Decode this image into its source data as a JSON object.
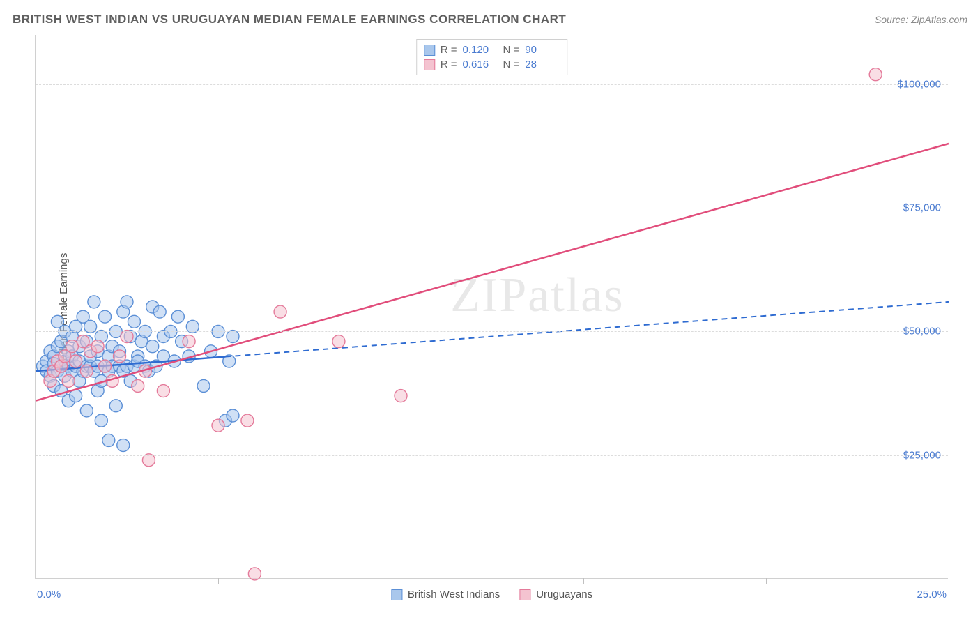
{
  "title": "BRITISH WEST INDIAN VS URUGUAYAN MEDIAN FEMALE EARNINGS CORRELATION CHART",
  "source": "Source: ZipAtlas.com",
  "watermark": "ZIPatlas",
  "ylabel": "Median Female Earnings",
  "chart": {
    "type": "scatter",
    "xlim": [
      0,
      25
    ],
    "ylim": [
      0,
      110000
    ],
    "x_ticks": [
      0,
      5,
      10,
      15,
      20,
      25
    ],
    "x_tick_labels_shown": {
      "0": "0.0%",
      "25": "25.0%"
    },
    "y_ticks": [
      25000,
      50000,
      75000,
      100000
    ],
    "y_tick_labels": [
      "$25,000",
      "$50,000",
      "$75,000",
      "$100,000"
    ],
    "grid_color": "#dcdcdc",
    "axis_color": "#d0d0d0",
    "background_color": "#ffffff",
    "tick_label_color": "#4a7bd0",
    "axis_label_color": "#555555",
    "marker_radius": 9,
    "marker_opacity": 0.55,
    "marker_stroke_width": 1.4,
    "series": [
      {
        "name": "British West Indians",
        "fill_color": "#a9c7ec",
        "stroke_color": "#5b8fd6",
        "line_color": "#2e6bd1",
        "R": "0.120",
        "N": "90",
        "regression": {
          "x1": 0,
          "y1": 42000,
          "x2": 25,
          "y2": 56000,
          "solid_until_x": 5.2
        },
        "points": [
          [
            0.2,
            43000
          ],
          [
            0.3,
            44000
          ],
          [
            0.3,
            42000
          ],
          [
            0.4,
            46000
          ],
          [
            0.4,
            41000
          ],
          [
            0.5,
            45000
          ],
          [
            0.5,
            43500
          ],
          [
            0.5,
            39000
          ],
          [
            0.6,
            47000
          ],
          [
            0.6,
            42000
          ],
          [
            0.6,
            52000
          ],
          [
            0.7,
            43000
          ],
          [
            0.7,
            48000
          ],
          [
            0.7,
            38000
          ],
          [
            0.8,
            44000
          ],
          [
            0.8,
            50000
          ],
          [
            0.8,
            41000
          ],
          [
            0.9,
            43000
          ],
          [
            0.9,
            46000
          ],
          [
            0.9,
            36000
          ],
          [
            1.0,
            45000
          ],
          [
            1.0,
            42000
          ],
          [
            1.0,
            49000
          ],
          [
            1.1,
            43000
          ],
          [
            1.1,
            51000
          ],
          [
            1.1,
            37000
          ],
          [
            1.2,
            44000
          ],
          [
            1.2,
            47000
          ],
          [
            1.2,
            40000
          ],
          [
            1.3,
            42000
          ],
          [
            1.3,
            53000
          ],
          [
            1.4,
            43000
          ],
          [
            1.4,
            34000
          ],
          [
            1.4,
            48000
          ],
          [
            1.5,
            43000
          ],
          [
            1.5,
            51000
          ],
          [
            1.5,
            45000
          ],
          [
            1.6,
            42000
          ],
          [
            1.6,
            56000
          ],
          [
            1.7,
            38000
          ],
          [
            1.7,
            46000
          ],
          [
            1.7,
            43000
          ],
          [
            1.8,
            40000
          ],
          [
            1.8,
            49000
          ],
          [
            1.8,
            32000
          ],
          [
            1.9,
            43000
          ],
          [
            1.9,
            53000
          ],
          [
            2.0,
            45000
          ],
          [
            2.0,
            42000
          ],
          [
            2.0,
            28000
          ],
          [
            2.1,
            47000
          ],
          [
            2.1,
            43000
          ],
          [
            2.2,
            50000
          ],
          [
            2.2,
            35000
          ],
          [
            2.3,
            43000
          ],
          [
            2.3,
            46000
          ],
          [
            2.4,
            42000
          ],
          [
            2.4,
            54000
          ],
          [
            2.4,
            27000
          ],
          [
            2.5,
            43000
          ],
          [
            2.5,
            56000
          ],
          [
            2.6,
            49000
          ],
          [
            2.6,
            40000
          ],
          [
            2.7,
            43000
          ],
          [
            2.7,
            52000
          ],
          [
            2.8,
            45000
          ],
          [
            2.8,
            44000
          ],
          [
            2.9,
            48000
          ],
          [
            3.0,
            43000
          ],
          [
            3.0,
            50000
          ],
          [
            3.1,
            42000
          ],
          [
            3.2,
            55000
          ],
          [
            3.2,
            47000
          ],
          [
            3.3,
            43000
          ],
          [
            3.4,
            54000
          ],
          [
            3.5,
            45000
          ],
          [
            3.5,
            49000
          ],
          [
            3.7,
            50000
          ],
          [
            3.8,
            44000
          ],
          [
            3.9,
            53000
          ],
          [
            4.0,
            48000
          ],
          [
            4.2,
            45000
          ],
          [
            4.3,
            51000
          ],
          [
            4.6,
            39000
          ],
          [
            4.8,
            46000
          ],
          [
            5.0,
            50000
          ],
          [
            5.2,
            32000
          ],
          [
            5.3,
            44000
          ],
          [
            5.4,
            33000
          ],
          [
            5.4,
            49000
          ]
        ]
      },
      {
        "name": "Uruguayans",
        "fill_color": "#f4c3d0",
        "stroke_color": "#e47a9a",
        "line_color": "#e14d7b",
        "R": "0.616",
        "N": "28",
        "regression": {
          "x1": 0,
          "y1": 36000,
          "x2": 25,
          "y2": 88000,
          "solid_until_x": 25
        },
        "points": [
          [
            0.4,
            40000
          ],
          [
            0.5,
            42000
          ],
          [
            0.6,
            44000
          ],
          [
            0.7,
            43000
          ],
          [
            0.8,
            45000
          ],
          [
            0.9,
            40000
          ],
          [
            1.0,
            47000
          ],
          [
            1.1,
            44000
          ],
          [
            1.3,
            48000
          ],
          [
            1.4,
            42000
          ],
          [
            1.5,
            46000
          ],
          [
            1.7,
            47000
          ],
          [
            1.9,
            43000
          ],
          [
            2.1,
            40000
          ],
          [
            2.3,
            45000
          ],
          [
            2.5,
            49000
          ],
          [
            2.8,
            39000
          ],
          [
            3.0,
            42000
          ],
          [
            3.1,
            24000
          ],
          [
            3.5,
            38000
          ],
          [
            4.2,
            48000
          ],
          [
            5.0,
            31000
          ],
          [
            5.8,
            32000
          ],
          [
            6.0,
            1000
          ],
          [
            6.7,
            54000
          ],
          [
            8.3,
            48000
          ],
          [
            10.0,
            37000
          ],
          [
            23.0,
            102000
          ]
        ]
      }
    ],
    "legend_top": [
      {
        "swatch_fill": "#a9c7ec",
        "swatch_stroke": "#5b8fd6",
        "r_label": "R =",
        "r_value": "0.120",
        "n_label": "N =",
        "n_value": "90"
      },
      {
        "swatch_fill": "#f4c3d0",
        "swatch_stroke": "#e47a9a",
        "r_label": "R =",
        "r_value": "0.616",
        "n_label": "N =",
        "n_value": "28"
      }
    ],
    "legend_bottom": [
      {
        "swatch_fill": "#a9c7ec",
        "swatch_stroke": "#5b8fd6",
        "label": "British West Indians"
      },
      {
        "swatch_fill": "#f4c3d0",
        "swatch_stroke": "#e47a9a",
        "label": "Uruguayans"
      }
    ]
  }
}
